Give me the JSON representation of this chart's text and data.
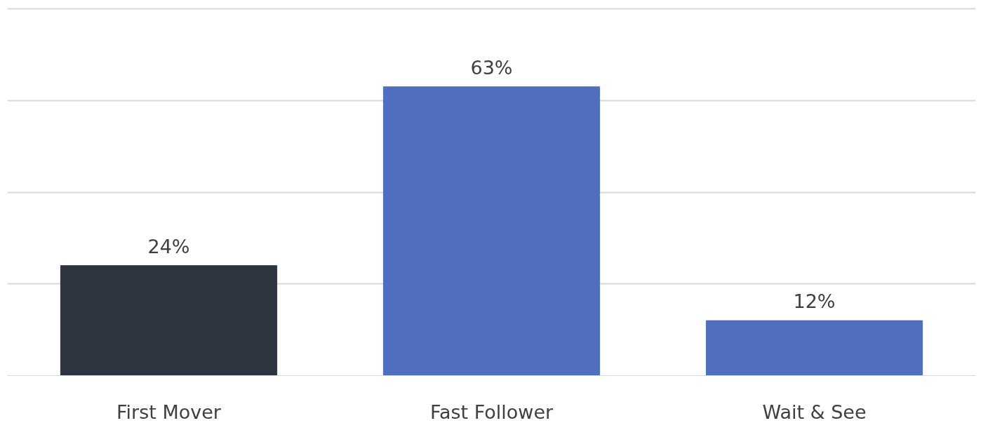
{
  "chart_data": {
    "type": "bar",
    "categories": [
      "First Mover",
      "Fast Follower",
      "Wait & See"
    ],
    "values": [
      24,
      63,
      12
    ],
    "value_labels": [
      "24%",
      "63%",
      "12%"
    ],
    "colors": [
      "#2e3440",
      "#4f6fbe",
      "#4f6fbe"
    ],
    "grid": "y",
    "tick_labels": "x"
  }
}
